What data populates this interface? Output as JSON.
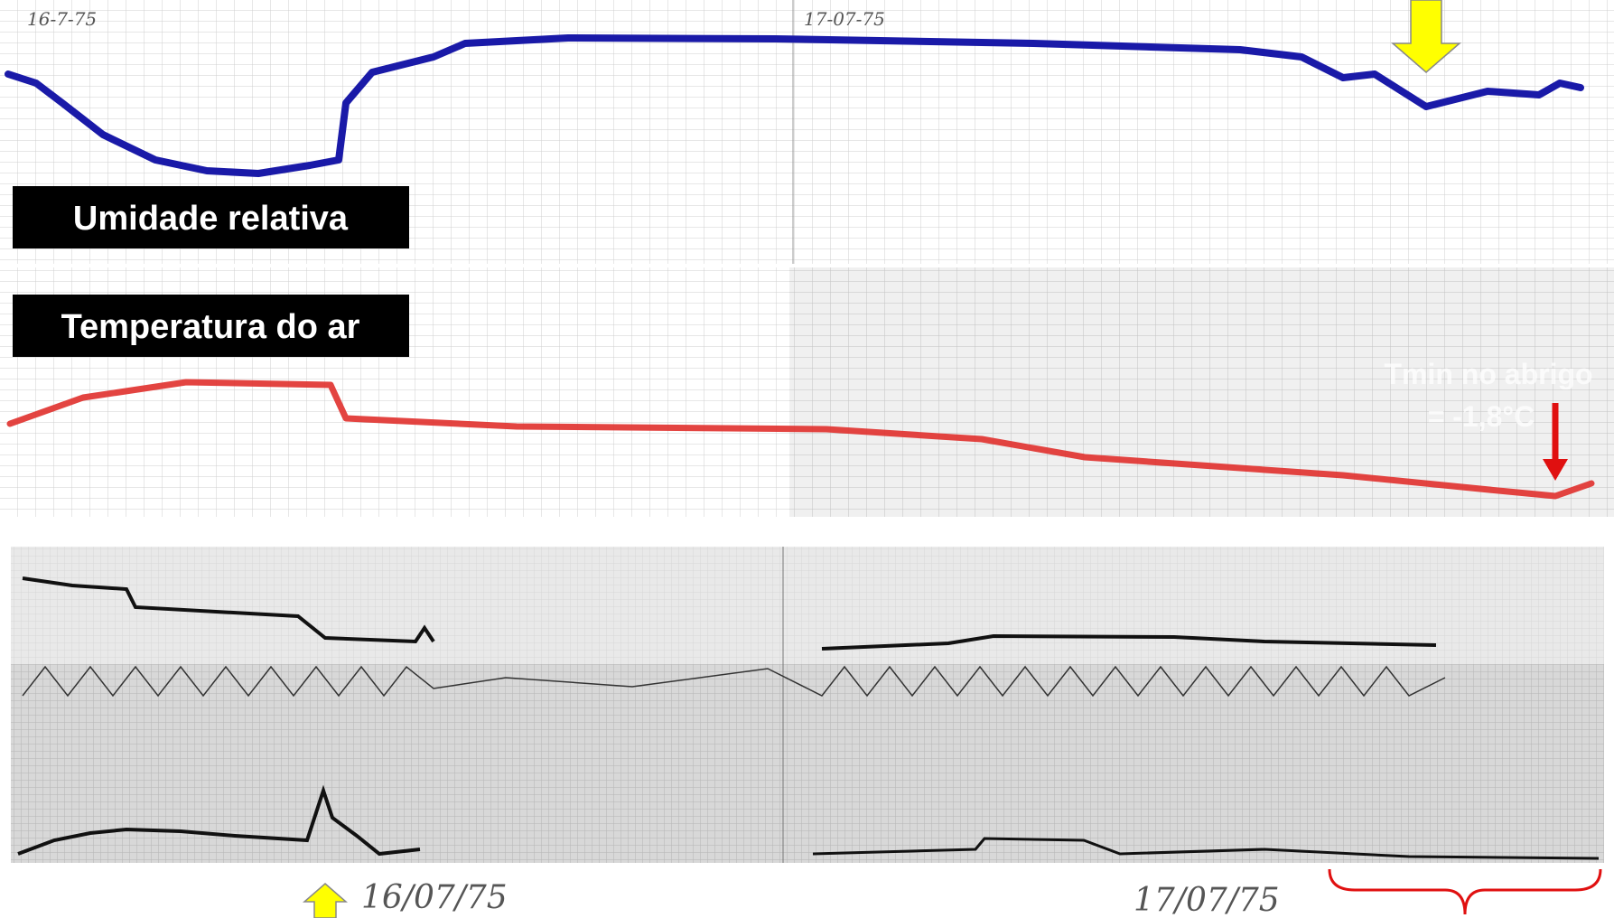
{
  "panels": {
    "humidity": {
      "label": "Umidade relativa",
      "date_note": "16-7-75",
      "date_note_2": "17-07-75"
    },
    "temperature": {
      "label": "Temperatura do ar",
      "annotation_line1": "Tmin no abrigo",
      "annotation_line2": "= -1,8°C"
    }
  },
  "dates": {
    "day1": "16/07/75",
    "day2": "17/07/75"
  }
}
